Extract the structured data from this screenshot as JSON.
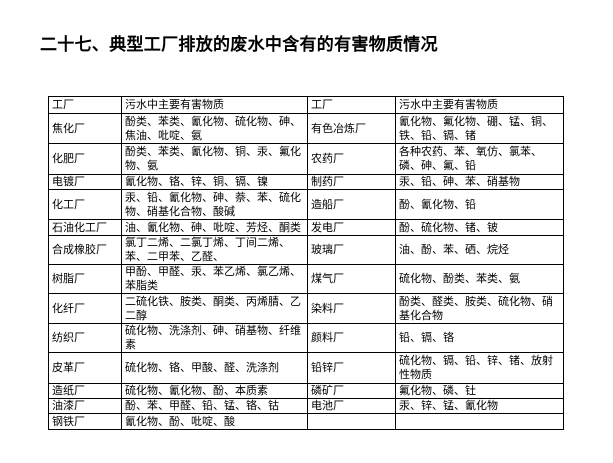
{
  "title": "二十七、典型工厂排放的废水中含有的有害物质情况",
  "table": {
    "headers": [
      "工厂",
      "污水中主要有害物质",
      "工厂",
      "污水中主要有害物质"
    ],
    "rows": [
      {
        "h": 30,
        "f1": "焦化厂",
        "s1": "酚类、苯类、氰化物、硫化物、砷、焦油、吡啶、氨",
        "f2": "有色冶炼厂",
        "s2": "氰化物、氟化物、硼、锰、铜、铁、铅、镉、锗"
      },
      {
        "h": 31,
        "f1": "化肥厂",
        "s1": "酚类、苯类、氰化物、铜、汞、氟化物、氨",
        "f2": "农药厂",
        "s2": "各种农药、苯、氧仿、氯苯、磷、砷、氟、铅"
      },
      {
        "h": 15,
        "f1": "电镀厂",
        "s1": "氰化物、铬、锌、铜、镉、镍",
        "f2": "制药厂",
        "s2": "汞、铅、砷、苯、硝基物"
      },
      {
        "h": 30,
        "f1": "化工厂",
        "s1": "汞、铅、氰化物、砷、萘、苯、硫化物、硝基化合物、酸碱",
        "f2": "造船厂",
        "s2": "酚、氰化物、铅"
      },
      {
        "h": 16,
        "f1": "石油化工厂",
        "s1": "油、氰化物、砷、吡啶、芳烃、酮类",
        "f2": "发电厂",
        "s2": "酚、硫化物、锗、铍"
      },
      {
        "h": 29,
        "f1": "合成橡胶厂",
        "s1": "氯丁二烯、二氯丁烯、丁间二烯、苯、二甲苯、乙醛、",
        "f2": "玻璃厂",
        "s2": "油、酚、苯、硒、烷烃"
      },
      {
        "h": 29,
        "f1": "树脂厂",
        "s1": "甲酚、甲醛、汞、苯乙烯、氯乙烯、苯脂类",
        "f2": "煤气厂",
        "s2": "硫化物、酚类、苯类、氨"
      },
      {
        "h": 30,
        "f1": "化纤厂",
        "s1": "二硫化铁、胺类、酮类、丙烯腈、乙二醇",
        "f2": "染料厂",
        "s2": "酚类、醛类、胺类、硫化物、硝基化合物"
      },
      {
        "h": 29,
        "f1": "纺织厂",
        "s1": "硫化物、洗涤剂、砷、硝基物、纤维素",
        "f2": "颜料厂",
        "s2": "铅、镉、铬"
      },
      {
        "h": 31,
        "f1": "皮革厂",
        "s1": "硫化物、铬、甲酸、醛、洗涤剂",
        "f2": "铅锌厂",
        "s2": "硫化物、镉、铅、锌、锗、放射性物质"
      },
      {
        "h": 15,
        "f1": "造纸厂",
        "s1": "硫化物、氰化物、酚、本质素",
        "f2": "磷矿厂",
        "s2": "氟化物、磷、钍"
      },
      {
        "h": 15,
        "f1": "油漆厂",
        "s1": "酚、苯、甲醛、铅、锰、铬、钴",
        "f2": "电池厂",
        "s2": "汞、锌、锰、氰化物"
      },
      {
        "h": 16,
        "f1": "钢铁厂",
        "s1": "氰化物、酚、吡啶、酸",
        "f2": "",
        "s2": ""
      }
    ]
  }
}
